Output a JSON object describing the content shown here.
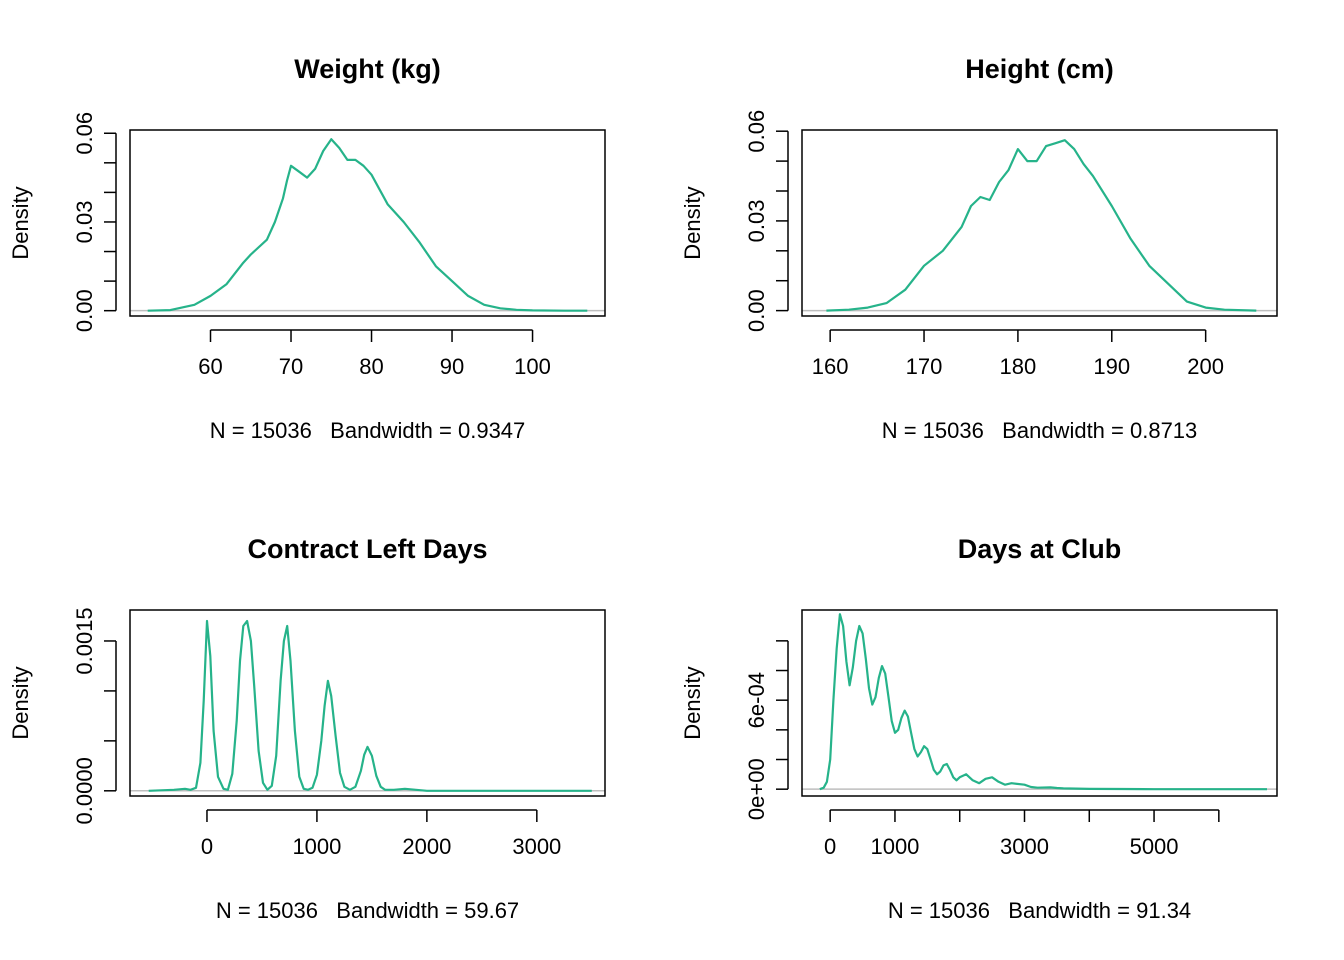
{
  "colors": {
    "curve": "#26B38A",
    "zeroline": "#BEBEBE",
    "axis": "#000000"
  },
  "chart_data": [
    {
      "type": "line",
      "title": "Weight (kg)",
      "ylabel": "Density",
      "subtitle": "N = 15036   Bandwidth = 0.9347",
      "xlim": [
        50,
        109
      ],
      "ylim": [
        -0.0018,
        0.0611
      ],
      "x_ticks": [
        60,
        70,
        80,
        90,
        100
      ],
      "y_ticks": [
        0,
        0.01,
        0.02,
        0.03,
        0.04,
        0.05,
        0.06
      ],
      "y_tick_labels": [
        "0.00",
        "",
        "",
        "0.03",
        "",
        "",
        "0.06"
      ],
      "series": [
        {
          "x": [
            52.2,
            55,
            58,
            60,
            62,
            64,
            65,
            67,
            68,
            69,
            69.5,
            70,
            71,
            72,
            73,
            74,
            75,
            76,
            77,
            78,
            79,
            80,
            82,
            84,
            86,
            88,
            90,
            92,
            94,
            96,
            98,
            100,
            104,
            106.8
          ],
          "y": [
            0,
            0.0002,
            0.002,
            0.005,
            0.009,
            0.016,
            0.019,
            0.024,
            0.03,
            0.038,
            0.044,
            0.049,
            0.047,
            0.045,
            0.048,
            0.054,
            0.058,
            0.055,
            0.051,
            0.051,
            0.049,
            0.046,
            0.036,
            0.03,
            0.023,
            0.015,
            0.01,
            0.005,
            0.002,
            0.0008,
            0.0003,
            0.0001,
            0,
            0
          ]
        }
      ]
    },
    {
      "type": "line",
      "title": "Height (cm)",
      "ylabel": "Density",
      "subtitle": "N = 15036   Bandwidth = 0.8713",
      "xlim": [
        157,
        207.6
      ],
      "ylim": [
        -0.0018,
        0.0604
      ],
      "x_ticks": [
        160,
        170,
        180,
        190,
        200
      ],
      "y_ticks": [
        0,
        0.01,
        0.02,
        0.03,
        0.04,
        0.05,
        0.06
      ],
      "y_tick_labels": [
        "0.00",
        "",
        "",
        "0.03",
        "",
        "",
        "0.06"
      ],
      "series": [
        {
          "x": [
            159.6,
            162,
            164,
            166,
            168,
            170,
            172,
            174,
            175,
            176,
            177,
            178,
            179,
            180,
            181,
            182,
            183,
            184,
            185,
            186,
            187,
            188,
            190,
            192,
            194,
            196,
            198,
            200,
            202,
            205.4
          ],
          "y": [
            0,
            0.0003,
            0.001,
            0.0025,
            0.007,
            0.015,
            0.02,
            0.028,
            0.035,
            0.038,
            0.037,
            0.043,
            0.047,
            0.054,
            0.05,
            0.05,
            0.055,
            0.056,
            0.057,
            0.054,
            0.049,
            0.045,
            0.035,
            0.024,
            0.015,
            0.009,
            0.003,
            0.001,
            0.0003,
            0
          ]
        }
      ]
    },
    {
      "type": "line",
      "title": "Contract Left Days",
      "ylabel": "Density",
      "subtitle": "N = 15036   Bandwidth = 59.67",
      "xlim": [
        -700,
        3620
      ],
      "ylim": [
        -5.2e-05,
        0.00181
      ],
      "x_ticks": [
        0,
        1000,
        2000,
        3000
      ],
      "y_ticks": [
        0,
        0.0005,
        0.001,
        0.0015
      ],
      "y_tick_labels": [
        "0.0000",
        "",
        "",
        "0.0015"
      ],
      "series": [
        {
          "x": [
            -530,
            -300,
            -200,
            -150,
            -100,
            -60,
            -30,
            0,
            30,
            60,
            100,
            150,
            190,
            230,
            270,
            300,
            330,
            365,
            400,
            430,
            470,
            510,
            550,
            590,
            630,
            670,
            700,
            730,
            760,
            800,
            840,
            880,
            920,
            960,
            1000,
            1040,
            1070,
            1100,
            1130,
            1170,
            1210,
            1250,
            1300,
            1350,
            1400,
            1430,
            1460,
            1500,
            1540,
            1580,
            1620,
            1700,
            1800,
            1900,
            2000,
            2500,
            3000,
            3500
          ],
          "y": [
            0,
            1e-05,
            2e-05,
            1e-05,
            3e-05,
            0.00028,
            0.0009,
            0.0017,
            0.00135,
            0.0006,
            0.00014,
            2e-05,
            1e-05,
            0.00017,
            0.0007,
            0.0013,
            0.00165,
            0.0017,
            0.0015,
            0.00105,
            0.0004,
            8e-05,
            1e-05,
            5e-05,
            0.00035,
            0.0011,
            0.0015,
            0.00165,
            0.0013,
            0.0006,
            0.00014,
            2e-05,
            1e-05,
            3e-05,
            0.00016,
            0.0005,
            0.00085,
            0.0011,
            0.00095,
            0.00055,
            0.00018,
            4e-05,
            1e-05,
            4e-05,
            0.0002,
            0.00036,
            0.00044,
            0.00035,
            0.00015,
            4e-05,
            1e-05,
            1e-05,
            2e-05,
            1e-05,
            0,
            0,
            0,
            0
          ]
        }
      ]
    },
    {
      "type": "line",
      "title": "Days at Club",
      "ylabel": "Density",
      "subtitle": "N = 15036   Bandwidth = 91.34",
      "xlim": [
        -435,
        6898
      ],
      "ylim": [
        -4.6e-05,
        0.001208
      ],
      "x_ticks": [
        0,
        1000,
        2000,
        3000,
        4000,
        5000,
        6000
      ],
      "x_tick_labels": [
        "0",
        "1000",
        "",
        "3000",
        "",
        "5000",
        ""
      ],
      "y_ticks": [
        0,
        0.0002,
        0.0004,
        0.0006,
        0.0008,
        0.001
      ],
      "y_tick_labels": [
        "0e+00",
        "",
        "",
        "6e-04",
        "",
        ""
      ],
      "series": [
        {
          "x": [
            -160,
            -100,
            -50,
            0,
            50,
            100,
            150,
            200,
            250,
            300,
            350,
            400,
            450,
            500,
            550,
            600,
            650,
            700,
            750,
            800,
            850,
            900,
            950,
            1000,
            1050,
            1100,
            1150,
            1200,
            1250,
            1300,
            1350,
            1400,
            1450,
            1500,
            1550,
            1600,
            1650,
            1700,
            1750,
            1800,
            1850,
            1900,
            1950,
            2000,
            2100,
            2200,
            2300,
            2400,
            2500,
            2600,
            2700,
            2800,
            3000,
            3100,
            3200,
            3400,
            3500,
            3600,
            3800,
            4000,
            4500,
            5000,
            5500,
            6000,
            6500,
            6743
          ],
          "y": [
            0,
            1e-05,
            5e-05,
            0.0002,
            0.0006,
            0.00095,
            0.00118,
            0.0011,
            0.00086,
            0.0007,
            0.00082,
            0.001,
            0.0011,
            0.00105,
            0.00088,
            0.00068,
            0.00057,
            0.00062,
            0.00075,
            0.00083,
            0.00078,
            0.00062,
            0.00046,
            0.00038,
            0.0004,
            0.00048,
            0.00053,
            0.00049,
            0.00038,
            0.00027,
            0.00022,
            0.00025,
            0.00029,
            0.00027,
            0.0002,
            0.00013,
            0.0001,
            0.00012,
            0.00016,
            0.00017,
            0.00013,
            8e-05,
            6e-05,
            8e-05,
            0.0001,
            6e-05,
            4e-05,
            7e-05,
            8e-05,
            5e-05,
            3e-05,
            4e-05,
            3e-05,
            1.5e-05,
            1e-05,
            1.2e-05,
            8e-06,
            5e-06,
            4e-06,
            2e-06,
            1e-06,
            0,
            0,
            0,
            0,
            0
          ]
        }
      ]
    }
  ]
}
